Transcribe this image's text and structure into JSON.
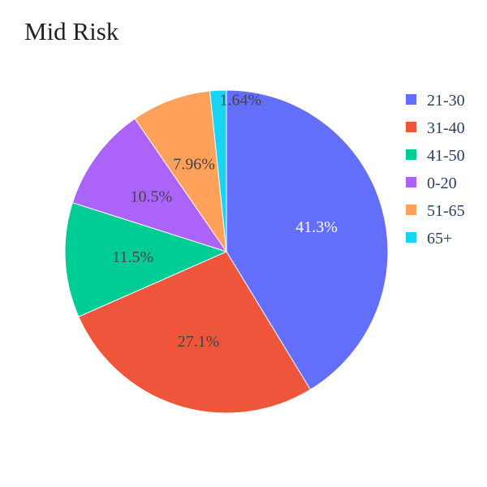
{
  "chart_data": {
    "type": "pie",
    "title": "Mid Risk",
    "categories": [
      "21-30",
      "31-40",
      "41-50",
      "0-20",
      "51-65",
      "65+"
    ],
    "values": [
      41.3,
      27.1,
      11.5,
      10.5,
      7.96,
      1.64
    ],
    "labels": [
      "41.3%",
      "27.1%",
      "11.5%",
      "10.5%",
      "7.96%",
      "1.64%"
    ],
    "colors": [
      "#636efa",
      "#ef553b",
      "#00cc96",
      "#ab63fa",
      "#ffa15a",
      "#19d3f3"
    ],
    "label_colors": [
      "#ffffff",
      "#444444",
      "#444444",
      "#444444",
      "#444444",
      "#444444"
    ],
    "label_placement": [
      "inside",
      "inside",
      "inside",
      "inside",
      "inside",
      "outside"
    ],
    "direction": "clockwise",
    "start_angle": "12 o'clock",
    "legend_position": "top-right",
    "legend_marker": "square"
  }
}
